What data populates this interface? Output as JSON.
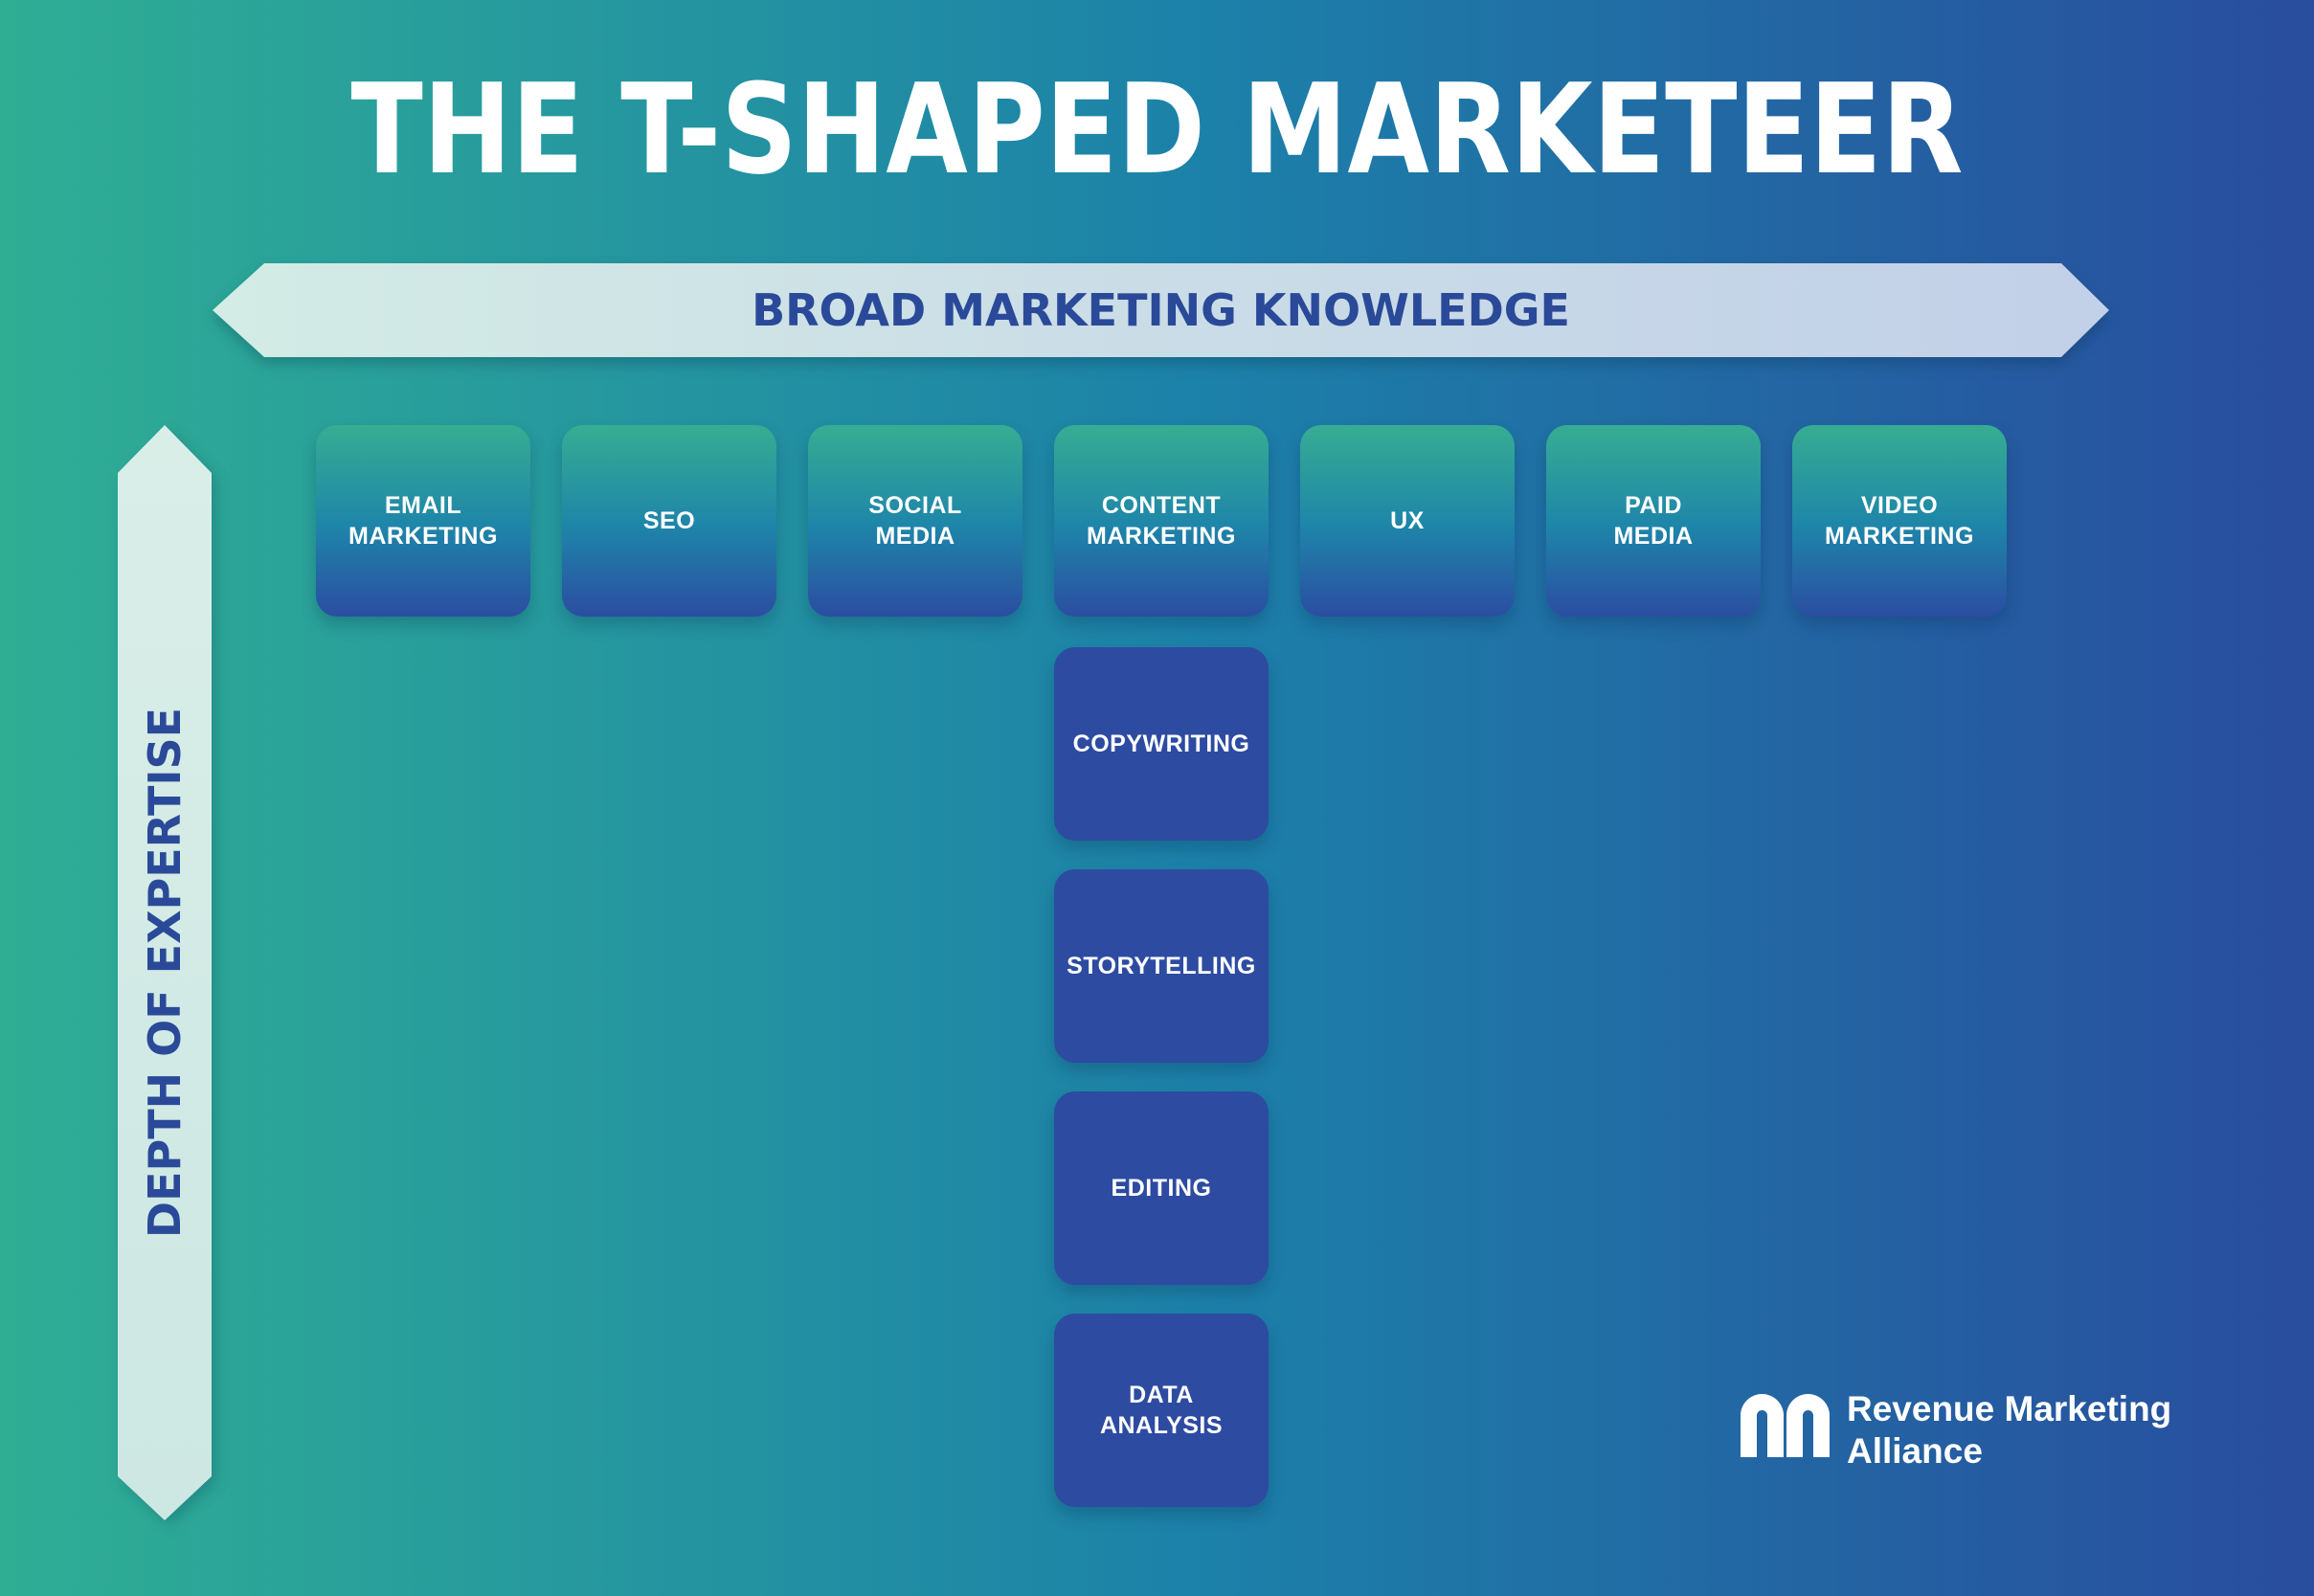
{
  "page": {
    "title": "THE T-SHAPED MARKETEER",
    "background_gradient": {
      "left": "#2FAE94",
      "middle": "#1C81A9",
      "right": "#294D9E"
    }
  },
  "horizontal_arrow": {
    "label": "BROAD MARKETING KNOWLEDGE",
    "fill_left": "#D3ECE5",
    "fill_right": "#C2D0E8",
    "text_color": "#2A4A99"
  },
  "vertical_arrow": {
    "label": "DEPTH OF EXPERTISE",
    "fill": "#D4EBE6",
    "text_color": "#2A4A99"
  },
  "box_styles": {
    "row_gradient_top": "#37AD92",
    "row_gradient_mid": "#1E86A9",
    "row_gradient_bottom": "#2B4DA1",
    "column_fill": "#2D4BA1",
    "text_color": "#FFFFFF"
  },
  "top_row_boxes": [
    {
      "label": "EMAIL\nMARKETING"
    },
    {
      "label": "SEO"
    },
    {
      "label": "SOCIAL\nMEDIA"
    },
    {
      "label": "CONTENT\nMARKETING"
    },
    {
      "label": "UX"
    },
    {
      "label": "PAID\nMEDIA"
    },
    {
      "label": "VIDEO\nMARKETING"
    }
  ],
  "depth_column_boxes": [
    {
      "label": "COPYWRITING"
    },
    {
      "label": "STORYTELLING"
    },
    {
      "label": "EDITING"
    },
    {
      "label": "DATA\nANALYSIS"
    }
  ],
  "logo": {
    "line1": "Revenue Marketing",
    "line2": "Alliance",
    "color": "#FFFFFF"
  }
}
